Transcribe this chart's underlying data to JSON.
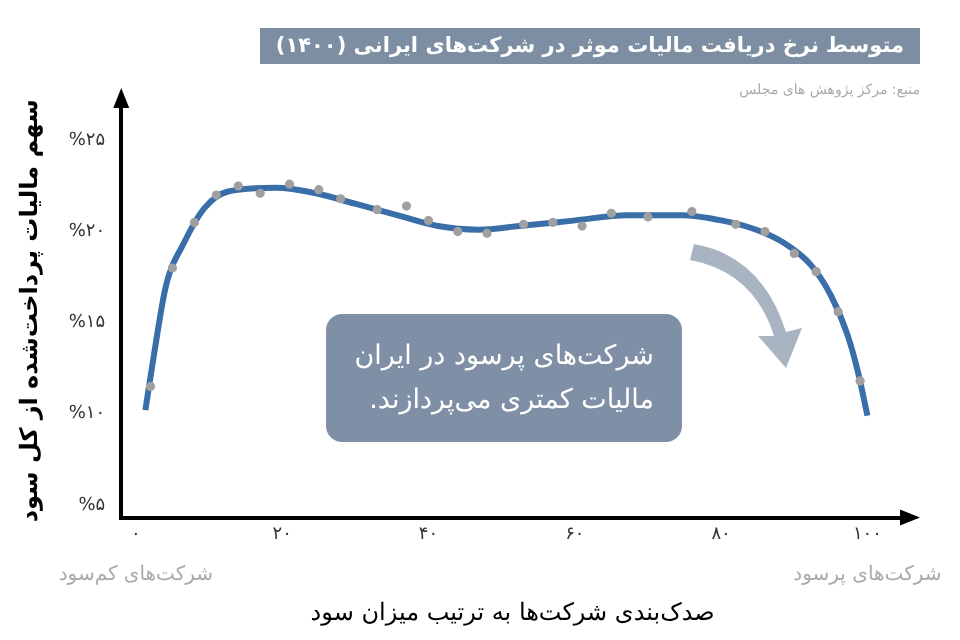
{
  "chart_data": {
    "type": "line",
    "title": "متوسط نرخ دریافت مالیات موثر در شرکت‌های ایرانی (۱۴۰۰)",
    "xlabel": "صدک‌بندی شرکت‌ها به ترتیب میزان سود",
    "ylabel": "سهم مالیات پرداخت‌شده از کل سود",
    "annotations": [
      "منبع: مرکز پژوهش های مجلس",
      "شرکت‌های پرسود در ایران مالیات کمتری می‌پردازند.",
      "شرکت‌های کم‌سود",
      "شرکت‌های پرسود"
    ],
    "series": [
      {
        "color": "#3a6ea8",
        "marker": "none",
        "x": [
          1.3,
          2.5,
          4.1,
          6.6,
          9.4,
          12.6,
          19.1,
          24.6,
          30.2,
          35.7,
          41.3,
          46.8,
          52.4,
          59.8,
          67.2,
          74.6,
          80.2,
          84.8,
          88.5,
          92.2,
          95,
          97.3,
          98.7,
          100
        ],
        "values": [
          10.2,
          13.3,
          17.0,
          19.4,
          21.3,
          22.2,
          22.4,
          22.1,
          21.5,
          20.9,
          20.3,
          20.1,
          20.3,
          20.6,
          20.9,
          20.9,
          20.6,
          20.1,
          19.4,
          18.2,
          16.5,
          14.3,
          12.3,
          9.9
        ]
      },
      {
        "type": "scatter",
        "color": "#a0a0a0",
        "marker": "circle",
        "x": [
          2,
          5,
          8,
          11,
          14,
          17,
          21,
          25,
          28,
          33,
          37,
          40,
          44,
          48,
          53,
          57,
          61,
          65,
          70,
          76,
          82,
          86,
          90,
          93,
          96,
          99
        ],
        "values": [
          11.5,
          18.0,
          20.5,
          22.0,
          22.5,
          22.1,
          22.6,
          22.3,
          21.8,
          21.2,
          21.4,
          20.6,
          20.0,
          19.9,
          20.4,
          20.5,
          20.3,
          21.0,
          20.8,
          21.1,
          20.4,
          20.0,
          18.8,
          17.8,
          15.6,
          11.8
        ]
      }
    ],
    "xlim": [
      -2,
      105
    ],
    "xticks": [
      {
        "value": 0,
        "label": "۰"
      },
      {
        "value": 20,
        "label": "۲۰"
      },
      {
        "value": 40,
        "label": "۴۰"
      },
      {
        "value": 60,
        "label": "۶۰"
      },
      {
        "value": 80,
        "label": "۸۰"
      },
      {
        "value": 100,
        "label": "۱۰۰"
      }
    ],
    "ylim": [
      4.3,
      27
    ],
    "yticks": [
      {
        "value": 5,
        "label": "%۵"
      },
      {
        "value": 10,
        "label": "%۱۰"
      },
      {
        "value": 15,
        "label": "%۱۵"
      },
      {
        "value": 20,
        "label": "%۲۰"
      },
      {
        "value": 25,
        "label": "%۲۵"
      }
    ],
    "grid": false,
    "legend": false,
    "line_style": "solid"
  }
}
